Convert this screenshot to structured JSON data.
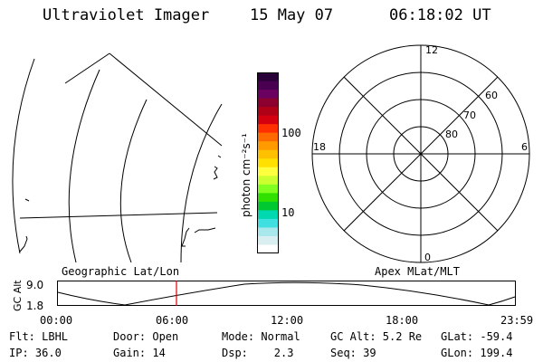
{
  "header": {
    "title": "Ultraviolet Imager",
    "date": "15 May 07",
    "time": "06:18:02 UT"
  },
  "colorbar": {
    "unit_label": "photon cm⁻²s⁻¹",
    "tick_100": "100",
    "tick_10": "10",
    "colors": [
      "#2a0038",
      "#4a0050",
      "#6a0060",
      "#8c0030",
      "#b00018",
      "#d40010",
      "#ff3000",
      "#ff6a00",
      "#ff9a00",
      "#ffc000",
      "#ffe000",
      "#ffff40",
      "#ccff30",
      "#80ff20",
      "#30e000",
      "#00c830",
      "#00d8b0",
      "#40e0e0",
      "#a8e8ec",
      "#d8eef0",
      "#ffffff"
    ]
  },
  "polar": {
    "mlt_12": "12",
    "mlt_18": "18",
    "mlt_6": "6",
    "mlt_0": "0",
    "lat_60": "60",
    "lat_70": "70",
    "lat_80": "80"
  },
  "panels": {
    "left_label": "Geographic Lat/Lon",
    "right_label": "Apex MLat/MLT"
  },
  "orbit": {
    "y_axis_label": "GC Alt",
    "y_max": "9.0",
    "y_min": "1.8",
    "x_ticks": [
      "00:00",
      "06:00",
      "12:00",
      "18:00",
      "23:59"
    ],
    "marker_time": "06:18"
  },
  "info": {
    "row1": {
      "flt": "Flt: LBHL",
      "door": "Door: Open",
      "mode": "Mode: Normal",
      "gcalt": "GC Alt: 5.2 Re",
      "glat": "GLat: -59.4"
    },
    "row2": {
      "ip": "IP: 36.0",
      "gain": "Gain: 14",
      "dsp": "Dsp:    2.3",
      "seq": "Seq: 39",
      "glon": "GLon: 199.4"
    }
  }
}
